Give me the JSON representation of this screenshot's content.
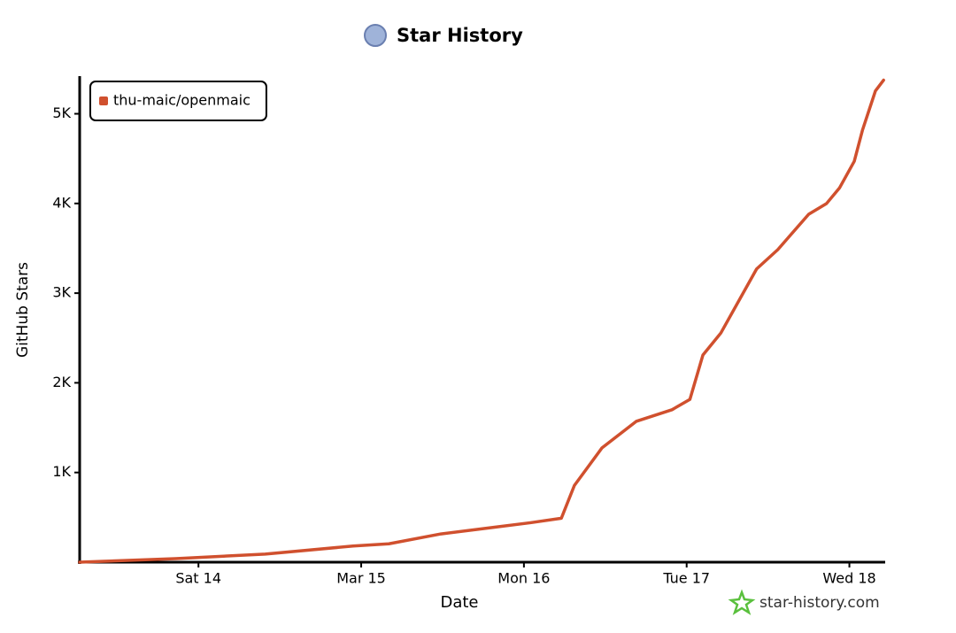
{
  "chart_data": {
    "type": "line",
    "title": "Star History",
    "x_label": "Date",
    "y_label": "GitHub Stars",
    "watermark": "star-history.com",
    "legend": "top-left",
    "grid": false,
    "x": [
      13.27,
      13.86,
      14.41,
      14.95,
      15.17,
      15.49,
      15.82,
      16.04,
      16.23,
      16.31,
      16.48,
      16.69,
      16.91,
      17.02,
      17.1,
      17.21,
      17.43,
      17.56,
      17.75,
      17.86,
      17.94,
      18.03,
      18.08,
      18.16,
      18.21
    ],
    "series": [
      {
        "name": "thu-maic/openmaic",
        "color": "#d0502e",
        "values": [
          0,
          40,
          90,
          180,
          205,
          315,
          390,
          440,
          490,
          855,
          1275,
          1570,
          1700,
          1815,
          2310,
          2555,
          3270,
          3485,
          3880,
          4000,
          4175,
          4470,
          4815,
          5255,
          5375
        ]
      }
    ],
    "xlim": [
      13.27,
      18.22
    ],
    "xticks": [
      {
        "value": 14,
        "label": "Sat 14"
      },
      {
        "value": 15,
        "label": "Mar 15"
      },
      {
        "value": 16,
        "label": "Mon 16"
      },
      {
        "value": 17,
        "label": "Tue 17"
      },
      {
        "value": 18,
        "label": "Wed 18"
      }
    ],
    "ylim": [
      0,
      5400
    ],
    "yticks": [
      {
        "value": 1000,
        "label": "1K"
      },
      {
        "value": 2000,
        "label": "2K"
      },
      {
        "value": 3000,
        "label": "3K"
      },
      {
        "value": 4000,
        "label": "4K"
      },
      {
        "value": 5000,
        "label": "5K"
      }
    ]
  }
}
